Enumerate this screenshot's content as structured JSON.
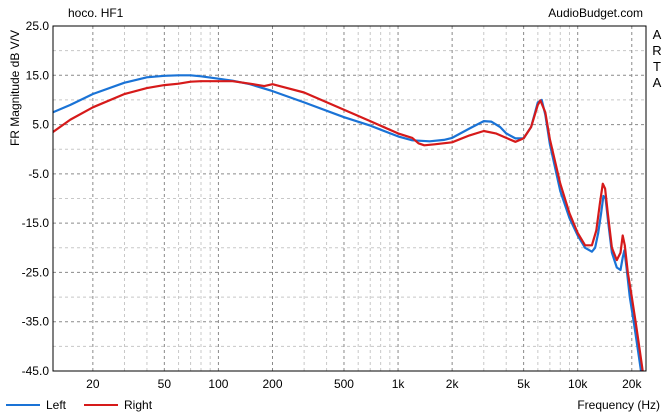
{
  "header": {
    "title": "hoco. HF1",
    "site": "AudioBudget.com"
  },
  "side_label": [
    "A",
    "R",
    "T",
    "A"
  ],
  "chart_data": {
    "type": "line",
    "title": "hoco. HF1",
    "xlabel": "Frequency (Hz)",
    "ylabel": "FR Magnitude dB V/V",
    "x_scale": "log",
    "xlim": [
      12,
      24000
    ],
    "ylim": [
      -45,
      25
    ],
    "y_ticks": [
      "25.0",
      "15.0",
      "5.0",
      "-5.0",
      "-15.0",
      "-25.0",
      "-35.0",
      "-45.0"
    ],
    "y_tick_values": [
      25,
      15,
      5,
      -5,
      -15,
      -25,
      -35,
      -45
    ],
    "x_ticks": [
      "20",
      "50",
      "100",
      "200",
      "500",
      "1k",
      "2k",
      "5k",
      "10k",
      "20k"
    ],
    "x_tick_values": [
      20,
      50,
      100,
      200,
      500,
      1000,
      2000,
      5000,
      10000,
      20000
    ],
    "grid": true,
    "legend_position": "bottom-left",
    "series": [
      {
        "name": "Left",
        "color": "#1a73d6",
        "points": [
          [
            12,
            7.5
          ],
          [
            15,
            9
          ],
          [
            20,
            11.2
          ],
          [
            30,
            13.5
          ],
          [
            40,
            14.6
          ],
          [
            50,
            14.9
          ],
          [
            60,
            15
          ],
          [
            70,
            15
          ],
          [
            80,
            14.8
          ],
          [
            100,
            14.3
          ],
          [
            120,
            13.9
          ],
          [
            150,
            13.2
          ],
          [
            200,
            11.8
          ],
          [
            300,
            9.5
          ],
          [
            500,
            6.5
          ],
          [
            700,
            4.8
          ],
          [
            1000,
            2.6
          ],
          [
            1200,
            1.8
          ],
          [
            1500,
            1.6
          ],
          [
            1800,
            1.9
          ],
          [
            2000,
            2.3
          ],
          [
            2500,
            4.2
          ],
          [
            3000,
            5.7
          ],
          [
            3300,
            5.6
          ],
          [
            3700,
            4.5
          ],
          [
            4000,
            3.2
          ],
          [
            4500,
            2.2
          ],
          [
            5000,
            2.2
          ],
          [
            5500,
            4.5
          ],
          [
            6000,
            9.5
          ],
          [
            6300,
            10
          ],
          [
            6600,
            7
          ],
          [
            7000,
            1
          ],
          [
            8000,
            -8.5
          ],
          [
            9000,
            -14
          ],
          [
            10000,
            -17.5
          ],
          [
            11000,
            -20
          ],
          [
            12000,
            -20.8
          ],
          [
            12500,
            -20
          ],
          [
            13000,
            -17
          ],
          [
            13500,
            -13
          ],
          [
            13900,
            -9.5
          ],
          [
            14300,
            -10
          ],
          [
            14800,
            -15
          ],
          [
            15500,
            -21
          ],
          [
            16500,
            -24
          ],
          [
            17300,
            -24.5
          ],
          [
            17800,
            -22
          ],
          [
            18200,
            -20.5
          ],
          [
            18700,
            -24
          ],
          [
            19500,
            -30
          ],
          [
            20500,
            -35
          ],
          [
            21500,
            -40
          ],
          [
            22500,
            -45
          ]
        ]
      },
      {
        "name": "Right",
        "color": "#d61a1a",
        "points": [
          [
            12,
            3.5
          ],
          [
            15,
            6
          ],
          [
            20,
            8.5
          ],
          [
            30,
            11.2
          ],
          [
            40,
            12.4
          ],
          [
            50,
            13
          ],
          [
            60,
            13.3
          ],
          [
            70,
            13.7
          ],
          [
            80,
            13.8
          ],
          [
            100,
            13.8
          ],
          [
            120,
            13.8
          ],
          [
            150,
            13.3
          ],
          [
            180,
            12.8
          ],
          [
            200,
            13.2
          ],
          [
            230,
            12.6
          ],
          [
            300,
            11.5
          ],
          [
            500,
            8
          ],
          [
            700,
            5.7
          ],
          [
            1000,
            3.2
          ],
          [
            1200,
            2.3
          ],
          [
            1300,
            1.2
          ],
          [
            1400,
            0.8
          ],
          [
            1600,
            1
          ],
          [
            2000,
            1.4
          ],
          [
            2500,
            2.8
          ],
          [
            3000,
            3.7
          ],
          [
            3500,
            3.2
          ],
          [
            4000,
            2.3
          ],
          [
            4500,
            1.5
          ],
          [
            5000,
            2.2
          ],
          [
            5500,
            4.5
          ],
          [
            6000,
            9
          ],
          [
            6200,
            9.9
          ],
          [
            6600,
            7.5
          ],
          [
            7000,
            2
          ],
          [
            8000,
            -7
          ],
          [
            9000,
            -13
          ],
          [
            10000,
            -17
          ],
          [
            11000,
            -19.5
          ],
          [
            12000,
            -19.5
          ],
          [
            12700,
            -16.5
          ],
          [
            13300,
            -11
          ],
          [
            13800,
            -7
          ],
          [
            14200,
            -8
          ],
          [
            14700,
            -13
          ],
          [
            15500,
            -20
          ],
          [
            16500,
            -22.5
          ],
          [
            17300,
            -21
          ],
          [
            17800,
            -17.5
          ],
          [
            18300,
            -19.5
          ],
          [
            19000,
            -25
          ],
          [
            20000,
            -30
          ],
          [
            21000,
            -35
          ],
          [
            22000,
            -40
          ],
          [
            23000,
            -45
          ]
        ]
      }
    ]
  }
}
